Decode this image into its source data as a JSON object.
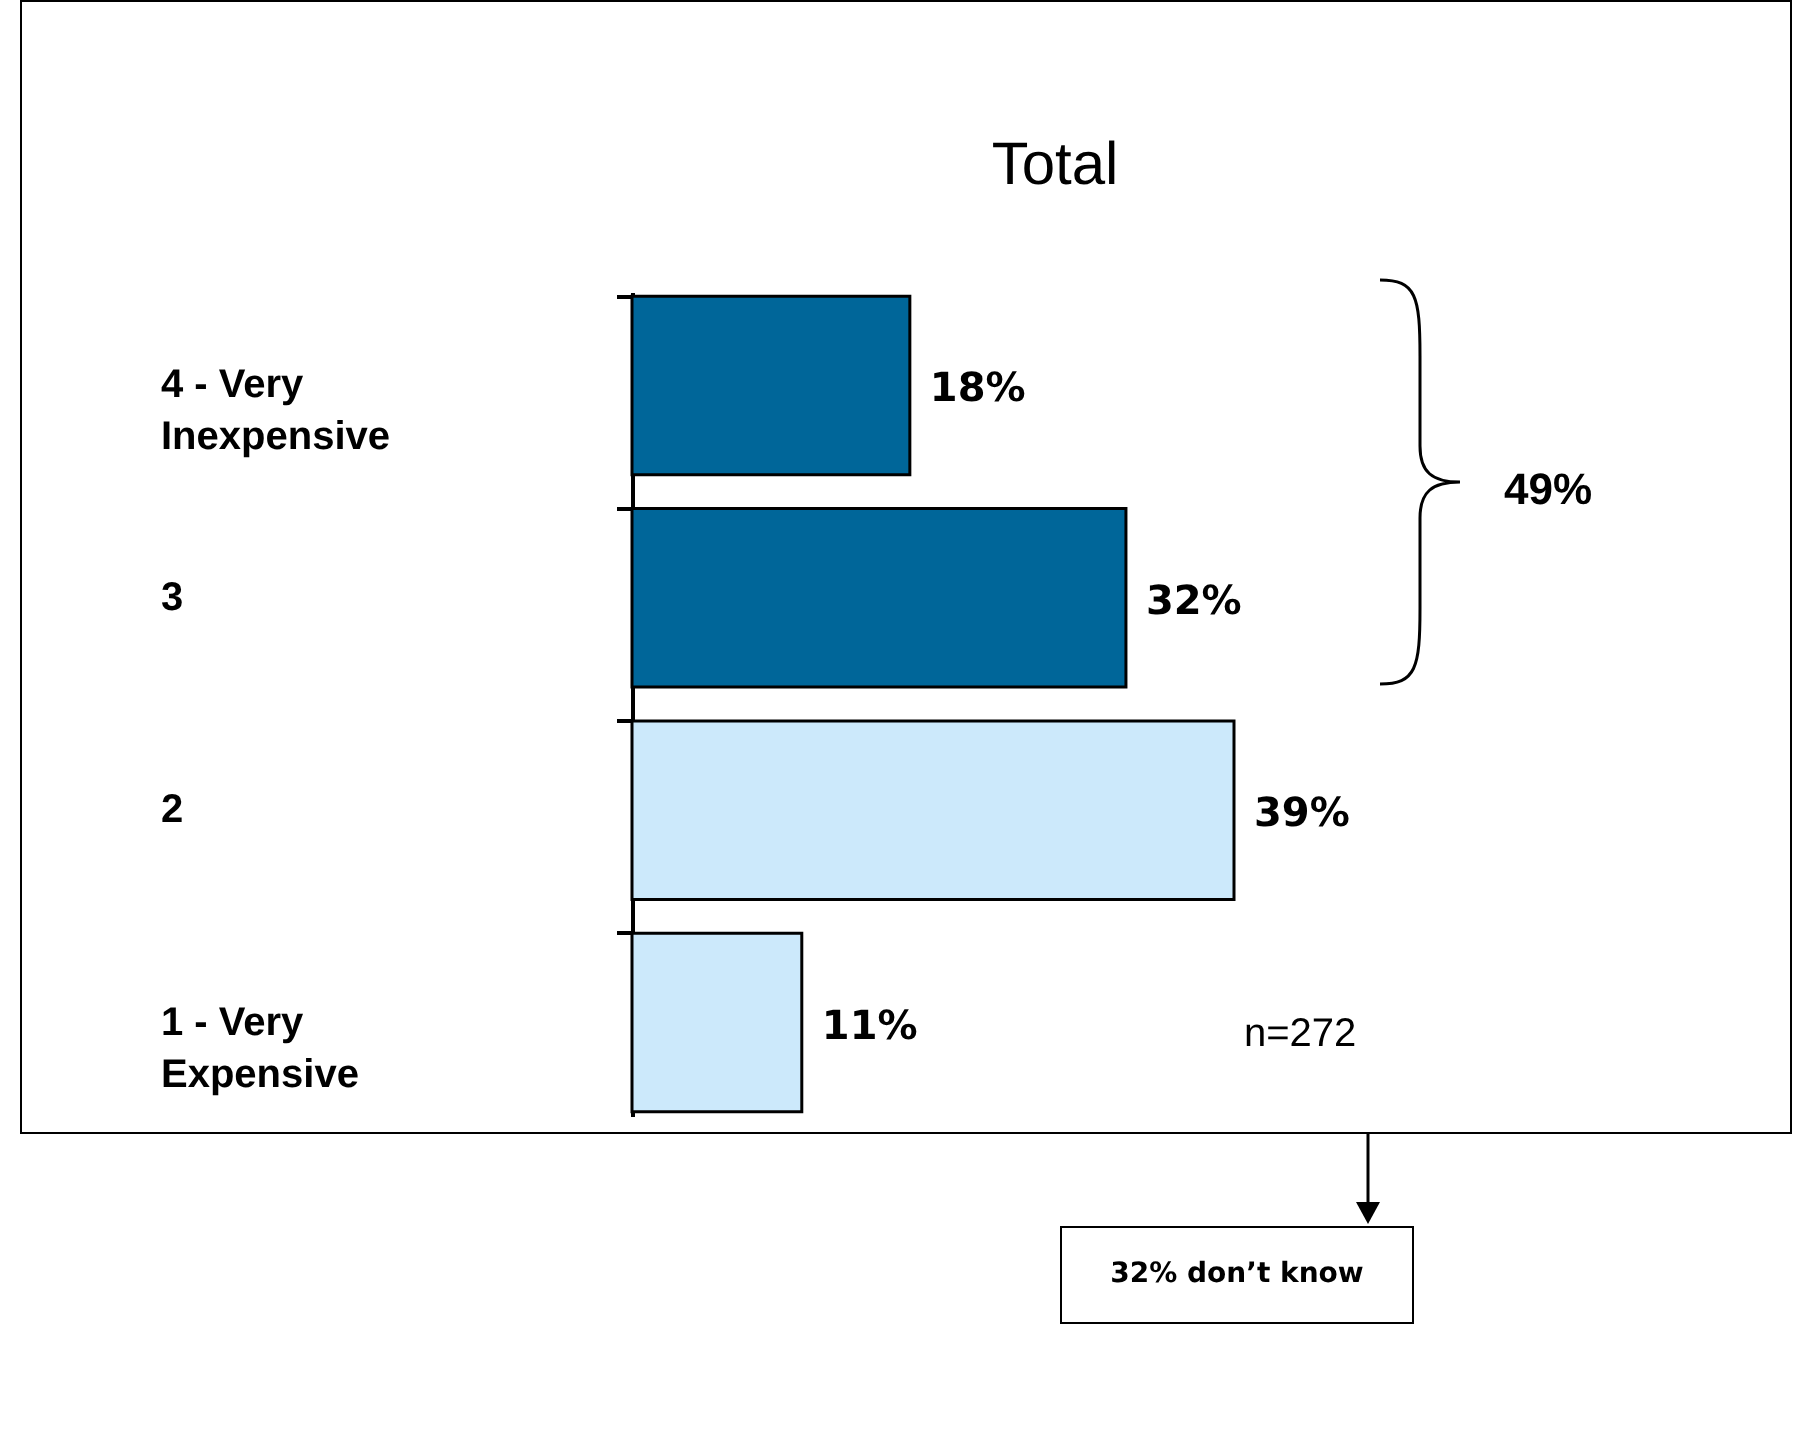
{
  "chart_data": {
    "type": "bar",
    "orientation": "horizontal",
    "title": "Total",
    "categories": [
      "4 - Very Inexpensive",
      "3",
      "2",
      "1 - Very Expensive"
    ],
    "values": [
      18,
      32,
      39,
      11
    ],
    "colors": [
      "#006699",
      "#006699",
      "#cce9fb",
      "#cce9fb"
    ],
    "value_labels": [
      "18%",
      "32%",
      "39%",
      "11%"
    ],
    "annotations": [
      "49%",
      "n=272",
      "32% don’t know"
    ],
    "legend": false,
    "grid": false
  }
}
